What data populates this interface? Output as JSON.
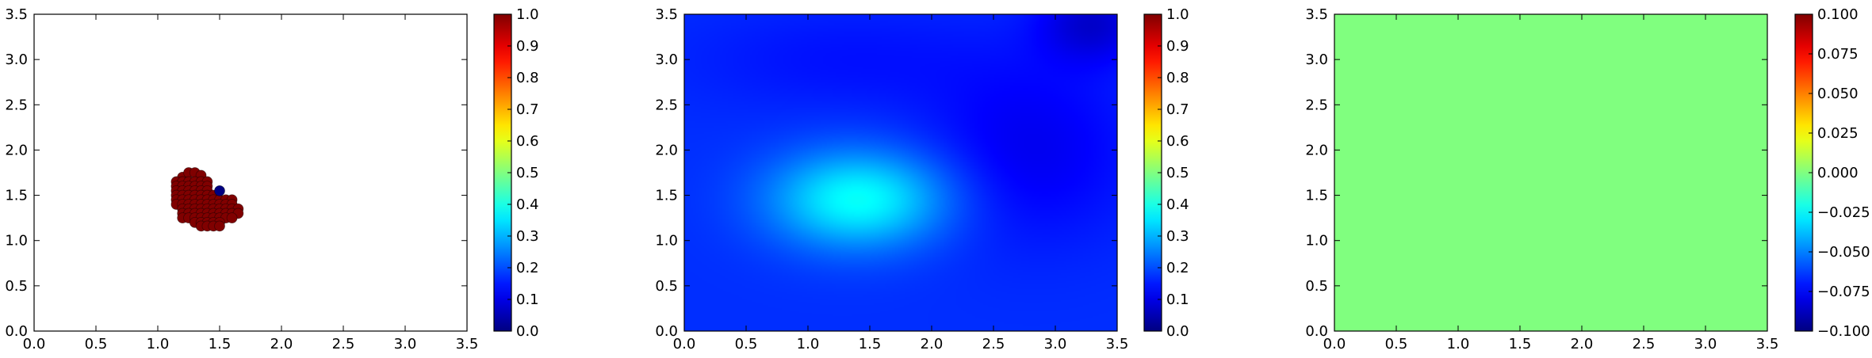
{
  "chart_data": [
    {
      "type": "scatter",
      "xlim": [
        0.0,
        3.5
      ],
      "ylim": [
        0.0,
        3.5
      ],
      "xticks": [
        "0.0",
        "0.5",
        "1.0",
        "1.5",
        "2.0",
        "2.5",
        "3.0",
        "3.5"
      ],
      "yticks": [
        "0.0",
        "0.5",
        "1.0",
        "1.5",
        "2.0",
        "2.5",
        "3.0",
        "3.5"
      ],
      "grid": false,
      "colormap": "jet",
      "colorbar": {
        "min": 0.0,
        "max": 1.0,
        "ticks": [
          "0.0",
          "0.1",
          "0.2",
          "0.3",
          "0.4",
          "0.5",
          "0.6",
          "0.7",
          "0.8",
          "0.9",
          "1.0"
        ]
      },
      "points": [
        {
          "x": 1.2,
          "y": 1.7,
          "v": 1
        },
        {
          "x": 1.25,
          "y": 1.75,
          "v": 1
        },
        {
          "x": 1.3,
          "y": 1.75,
          "v": 1
        },
        {
          "x": 1.35,
          "y": 1.72,
          "v": 1
        },
        {
          "x": 1.15,
          "y": 1.65,
          "v": 1
        },
        {
          "x": 1.2,
          "y": 1.65,
          "v": 1
        },
        {
          "x": 1.25,
          "y": 1.65,
          "v": 1
        },
        {
          "x": 1.3,
          "y": 1.65,
          "v": 1
        },
        {
          "x": 1.35,
          "y": 1.65,
          "v": 1
        },
        {
          "x": 1.4,
          "y": 1.65,
          "v": 1
        },
        {
          "x": 1.15,
          "y": 1.6,
          "v": 1
        },
        {
          "x": 1.2,
          "y": 1.6,
          "v": 1
        },
        {
          "x": 1.25,
          "y": 1.6,
          "v": 1
        },
        {
          "x": 1.3,
          "y": 1.6,
          "v": 1
        },
        {
          "x": 1.35,
          "y": 1.6,
          "v": 1
        },
        {
          "x": 1.4,
          "y": 1.6,
          "v": 1
        },
        {
          "x": 1.15,
          "y": 1.55,
          "v": 1
        },
        {
          "x": 1.2,
          "y": 1.55,
          "v": 1
        },
        {
          "x": 1.25,
          "y": 1.55,
          "v": 1
        },
        {
          "x": 1.3,
          "y": 1.55,
          "v": 1
        },
        {
          "x": 1.35,
          "y": 1.55,
          "v": 1
        },
        {
          "x": 1.4,
          "y": 1.55,
          "v": 1
        },
        {
          "x": 1.15,
          "y": 1.5,
          "v": 1
        },
        {
          "x": 1.2,
          "y": 1.5,
          "v": 1
        },
        {
          "x": 1.25,
          "y": 1.5,
          "v": 1
        },
        {
          "x": 1.3,
          "y": 1.5,
          "v": 1
        },
        {
          "x": 1.35,
          "y": 1.5,
          "v": 1
        },
        {
          "x": 1.4,
          "y": 1.5,
          "v": 1
        },
        {
          "x": 1.45,
          "y": 1.5,
          "v": 1
        },
        {
          "x": 1.15,
          "y": 1.45,
          "v": 1
        },
        {
          "x": 1.2,
          "y": 1.45,
          "v": 1
        },
        {
          "x": 1.25,
          "y": 1.45,
          "v": 1
        },
        {
          "x": 1.3,
          "y": 1.45,
          "v": 1
        },
        {
          "x": 1.35,
          "y": 1.45,
          "v": 1
        },
        {
          "x": 1.4,
          "y": 1.45,
          "v": 1
        },
        {
          "x": 1.45,
          "y": 1.45,
          "v": 1
        },
        {
          "x": 1.5,
          "y": 1.45,
          "v": 1
        },
        {
          "x": 1.55,
          "y": 1.45,
          "v": 1
        },
        {
          "x": 1.6,
          "y": 1.45,
          "v": 1
        },
        {
          "x": 1.15,
          "y": 1.4,
          "v": 1
        },
        {
          "x": 1.2,
          "y": 1.4,
          "v": 1
        },
        {
          "x": 1.25,
          "y": 1.4,
          "v": 1
        },
        {
          "x": 1.3,
          "y": 1.4,
          "v": 1
        },
        {
          "x": 1.35,
          "y": 1.4,
          "v": 1
        },
        {
          "x": 1.4,
          "y": 1.4,
          "v": 1
        },
        {
          "x": 1.45,
          "y": 1.4,
          "v": 1
        },
        {
          "x": 1.5,
          "y": 1.4,
          "v": 1
        },
        {
          "x": 1.55,
          "y": 1.4,
          "v": 1
        },
        {
          "x": 1.6,
          "y": 1.4,
          "v": 1
        },
        {
          "x": 1.2,
          "y": 1.35,
          "v": 1
        },
        {
          "x": 1.25,
          "y": 1.35,
          "v": 1
        },
        {
          "x": 1.3,
          "y": 1.35,
          "v": 1
        },
        {
          "x": 1.35,
          "y": 1.35,
          "v": 1
        },
        {
          "x": 1.4,
          "y": 1.35,
          "v": 1
        },
        {
          "x": 1.45,
          "y": 1.35,
          "v": 1
        },
        {
          "x": 1.5,
          "y": 1.35,
          "v": 1
        },
        {
          "x": 1.55,
          "y": 1.35,
          "v": 1
        },
        {
          "x": 1.6,
          "y": 1.35,
          "v": 1
        },
        {
          "x": 1.65,
          "y": 1.35,
          "v": 1
        },
        {
          "x": 1.2,
          "y": 1.3,
          "v": 1
        },
        {
          "x": 1.25,
          "y": 1.3,
          "v": 1
        },
        {
          "x": 1.3,
          "y": 1.3,
          "v": 1
        },
        {
          "x": 1.35,
          "y": 1.3,
          "v": 1
        },
        {
          "x": 1.4,
          "y": 1.3,
          "v": 1
        },
        {
          "x": 1.45,
          "y": 1.3,
          "v": 1
        },
        {
          "x": 1.5,
          "y": 1.3,
          "v": 1
        },
        {
          "x": 1.55,
          "y": 1.3,
          "v": 1
        },
        {
          "x": 1.6,
          "y": 1.3,
          "v": 1
        },
        {
          "x": 1.65,
          "y": 1.3,
          "v": 1
        },
        {
          "x": 1.2,
          "y": 1.25,
          "v": 1
        },
        {
          "x": 1.25,
          "y": 1.25,
          "v": 1
        },
        {
          "x": 1.3,
          "y": 1.25,
          "v": 1
        },
        {
          "x": 1.35,
          "y": 1.25,
          "v": 1
        },
        {
          "x": 1.4,
          "y": 1.25,
          "v": 1
        },
        {
          "x": 1.45,
          "y": 1.25,
          "v": 1
        },
        {
          "x": 1.5,
          "y": 1.25,
          "v": 1
        },
        {
          "x": 1.55,
          "y": 1.25,
          "v": 1
        },
        {
          "x": 1.6,
          "y": 1.25,
          "v": 1
        },
        {
          "x": 1.3,
          "y": 1.2,
          "v": 1
        },
        {
          "x": 1.35,
          "y": 1.2,
          "v": 1
        },
        {
          "x": 1.4,
          "y": 1.2,
          "v": 1
        },
        {
          "x": 1.45,
          "y": 1.2,
          "v": 1
        },
        {
          "x": 1.5,
          "y": 1.2,
          "v": 1
        },
        {
          "x": 1.35,
          "y": 1.16,
          "v": 1
        },
        {
          "x": 1.4,
          "y": 1.16,
          "v": 1
        },
        {
          "x": 1.45,
          "y": 1.16,
          "v": 1
        },
        {
          "x": 1.5,
          "y": 1.16,
          "v": 1
        },
        {
          "x": 1.5,
          "y": 1.55,
          "v": 0
        }
      ]
    },
    {
      "type": "heatmap",
      "xlim": [
        0.0,
        3.5
      ],
      "ylim": [
        0.0,
        3.5
      ],
      "xticks": [
        "0.0",
        "0.5",
        "1.0",
        "1.5",
        "2.0",
        "2.5",
        "3.0",
        "3.5"
      ],
      "yticks": [
        "0.0",
        "0.5",
        "1.0",
        "1.5",
        "2.0",
        "2.5",
        "3.0",
        "3.5"
      ],
      "grid": false,
      "colormap": "jet",
      "colorbar": {
        "min": 0.0,
        "max": 1.0,
        "ticks": [
          "0.0",
          "0.1",
          "0.2",
          "0.3",
          "0.4",
          "0.5",
          "0.6",
          "0.7",
          "0.8",
          "0.9",
          "1.0"
        ]
      },
      "field": {
        "background": 0.17,
        "peak": {
          "x": 1.4,
          "y": 1.45,
          "value": 0.38,
          "sx": 0.5,
          "sy": 0.38
        },
        "dark_spots": [
          {
            "x": 2.8,
            "y": 2.0,
            "value": 0.11,
            "sx": 0.6,
            "sy": 0.7
          },
          {
            "x": 3.3,
            "y": 3.4,
            "value": 0.08,
            "sx": 0.3,
            "sy": 0.3
          },
          {
            "x": 1.3,
            "y": 3.0,
            "value": 0.14,
            "sx": 0.9,
            "sy": 0.4
          }
        ]
      }
    },
    {
      "type": "heatmap",
      "xlim": [
        0.0,
        3.5
      ],
      "ylim": [
        0.0,
        3.5
      ],
      "xticks": [
        "0.0",
        "0.5",
        "1.0",
        "1.5",
        "2.0",
        "2.5",
        "3.0",
        "3.5"
      ],
      "yticks": [
        "0.0",
        "0.5",
        "1.0",
        "1.5",
        "2.0",
        "2.5",
        "3.0",
        "3.5"
      ],
      "grid": false,
      "colormap": "jet",
      "colorbar": {
        "min": -0.1,
        "max": 0.1,
        "ticks": [
          "−0.100",
          "−0.075",
          "−0.050",
          "−0.025",
          "0.000",
          "0.025",
          "0.050",
          "0.075",
          "0.100"
        ]
      },
      "field": {
        "constant": 0.0,
        "color": "#80ff7f"
      }
    }
  ]
}
